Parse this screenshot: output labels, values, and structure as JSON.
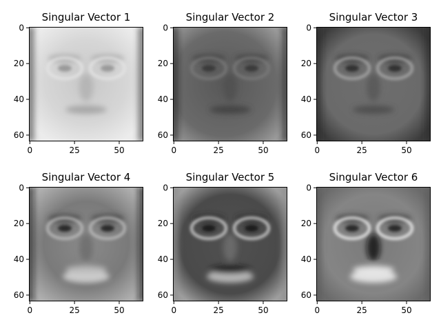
{
  "figure": {
    "grid_layout": "2 rows x 3 columns",
    "colormap": "grayscale",
    "panels": [
      {
        "title": "Singular Vector 1",
        "content": "grayscale eigenface image",
        "x_ticks": [
          "0",
          "25",
          "50"
        ],
        "y_ticks": [
          "0",
          "20",
          "40",
          "60"
        ]
      },
      {
        "title": "Singular Vector 2",
        "content": "grayscale eigenface image",
        "x_ticks": [
          "0",
          "25",
          "50"
        ],
        "y_ticks": [
          "0",
          "20",
          "40",
          "60"
        ]
      },
      {
        "title": "Singular Vector 3",
        "content": "grayscale eigenface image",
        "x_ticks": [
          "0",
          "25",
          "50"
        ],
        "y_ticks": [
          "0",
          "20",
          "40",
          "60"
        ]
      },
      {
        "title": "Singular Vector 4",
        "content": "grayscale eigenface image",
        "x_ticks": [
          "0",
          "25",
          "50"
        ],
        "y_ticks": [
          "0",
          "20",
          "40",
          "60"
        ]
      },
      {
        "title": "Singular Vector 5",
        "content": "grayscale eigenface image",
        "x_ticks": [
          "0",
          "25",
          "50"
        ],
        "y_ticks": [
          "0",
          "20",
          "40",
          "60"
        ]
      },
      {
        "title": "Singular Vector 6",
        "content": "grayscale eigenface image",
        "x_ticks": [
          "0",
          "25",
          "50"
        ],
        "y_ticks": [
          "0",
          "20",
          "40",
          "60"
        ]
      }
    ]
  }
}
